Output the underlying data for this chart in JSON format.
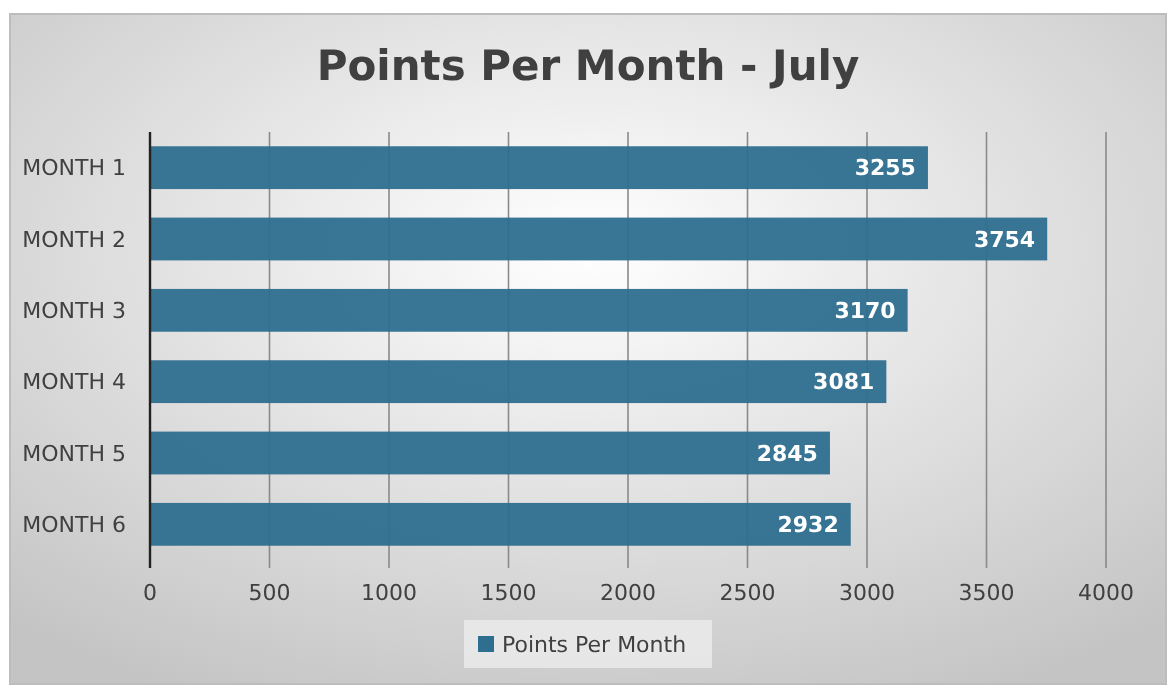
{
  "chart_data": {
    "type": "bar",
    "orientation": "horizontal",
    "title": "Points Per Month - July",
    "categories": [
      "MONTH 1",
      "MONTH 2",
      "MONTH 3",
      "MONTH 4",
      "MONTH 5",
      "MONTH 6"
    ],
    "series": [
      {
        "name": "Points Per Month",
        "color": "#2e6e8e",
        "values": [
          3255,
          3754,
          3170,
          3081,
          2845,
          2932
        ]
      }
    ],
    "xlim": [
      0,
      4000
    ],
    "xticks": [
      0,
      500,
      1000,
      1500,
      2000,
      2500,
      3000,
      3500,
      4000
    ],
    "grid": "x",
    "legend": "bottom",
    "data_labels": true
  }
}
